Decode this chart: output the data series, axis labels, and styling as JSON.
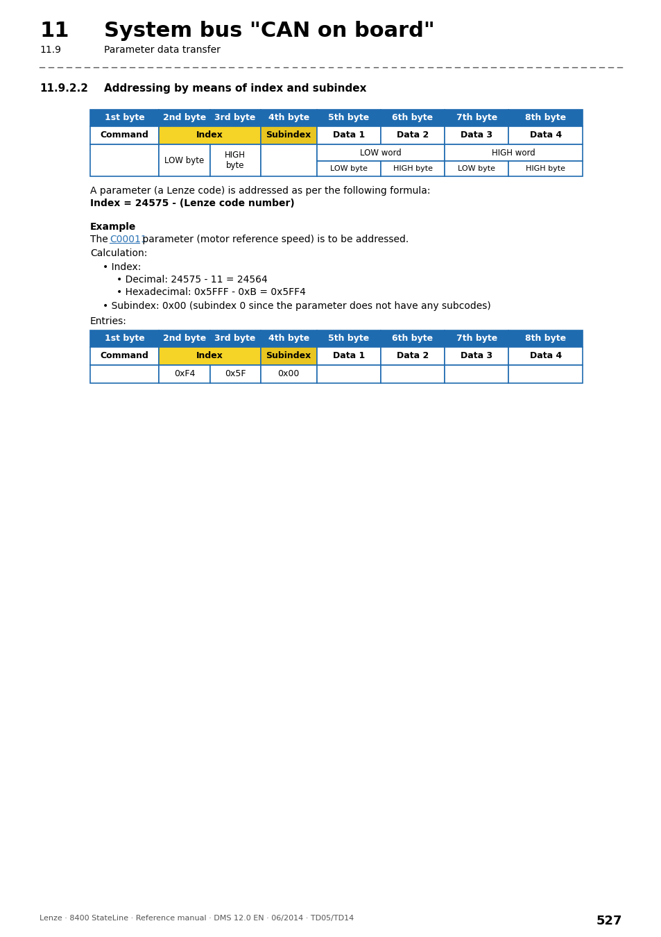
{
  "page_title_number": "11",
  "page_title_text": "System bus \"CAN on board\"",
  "page_subtitle_number": "11.9",
  "page_subtitle_text": "Parameter data transfer",
  "section_number": "11.9.2.2",
  "section_title": "Addressing by means of index and subindex",
  "table1_header": [
    "1st byte",
    "2nd byte",
    "3rd byte",
    "4th byte",
    "5th byte",
    "6th byte",
    "7th byte",
    "8th byte"
  ],
  "formula_text": "A parameter (a Lenze code) is addressed as per the following formula:",
  "formula_bold": "Index = 24575 - (Lenze code number)",
  "example_title": "Example",
  "example_link": "C00011",
  "footer_text": "Lenze · 8400 StateLine · Reference manual · DMS 12.0 EN · 06/2014 · TD05/TD14",
  "page_number": "527",
  "color_header_blue": "#1F6BB0",
  "color_index_yellow": "#F5D327",
  "color_subindex_yellow": "#E8C520",
  "color_border": "#1F6BB0",
  "color_link": "#2E74B5",
  "color_bg": "#FFFFFF"
}
